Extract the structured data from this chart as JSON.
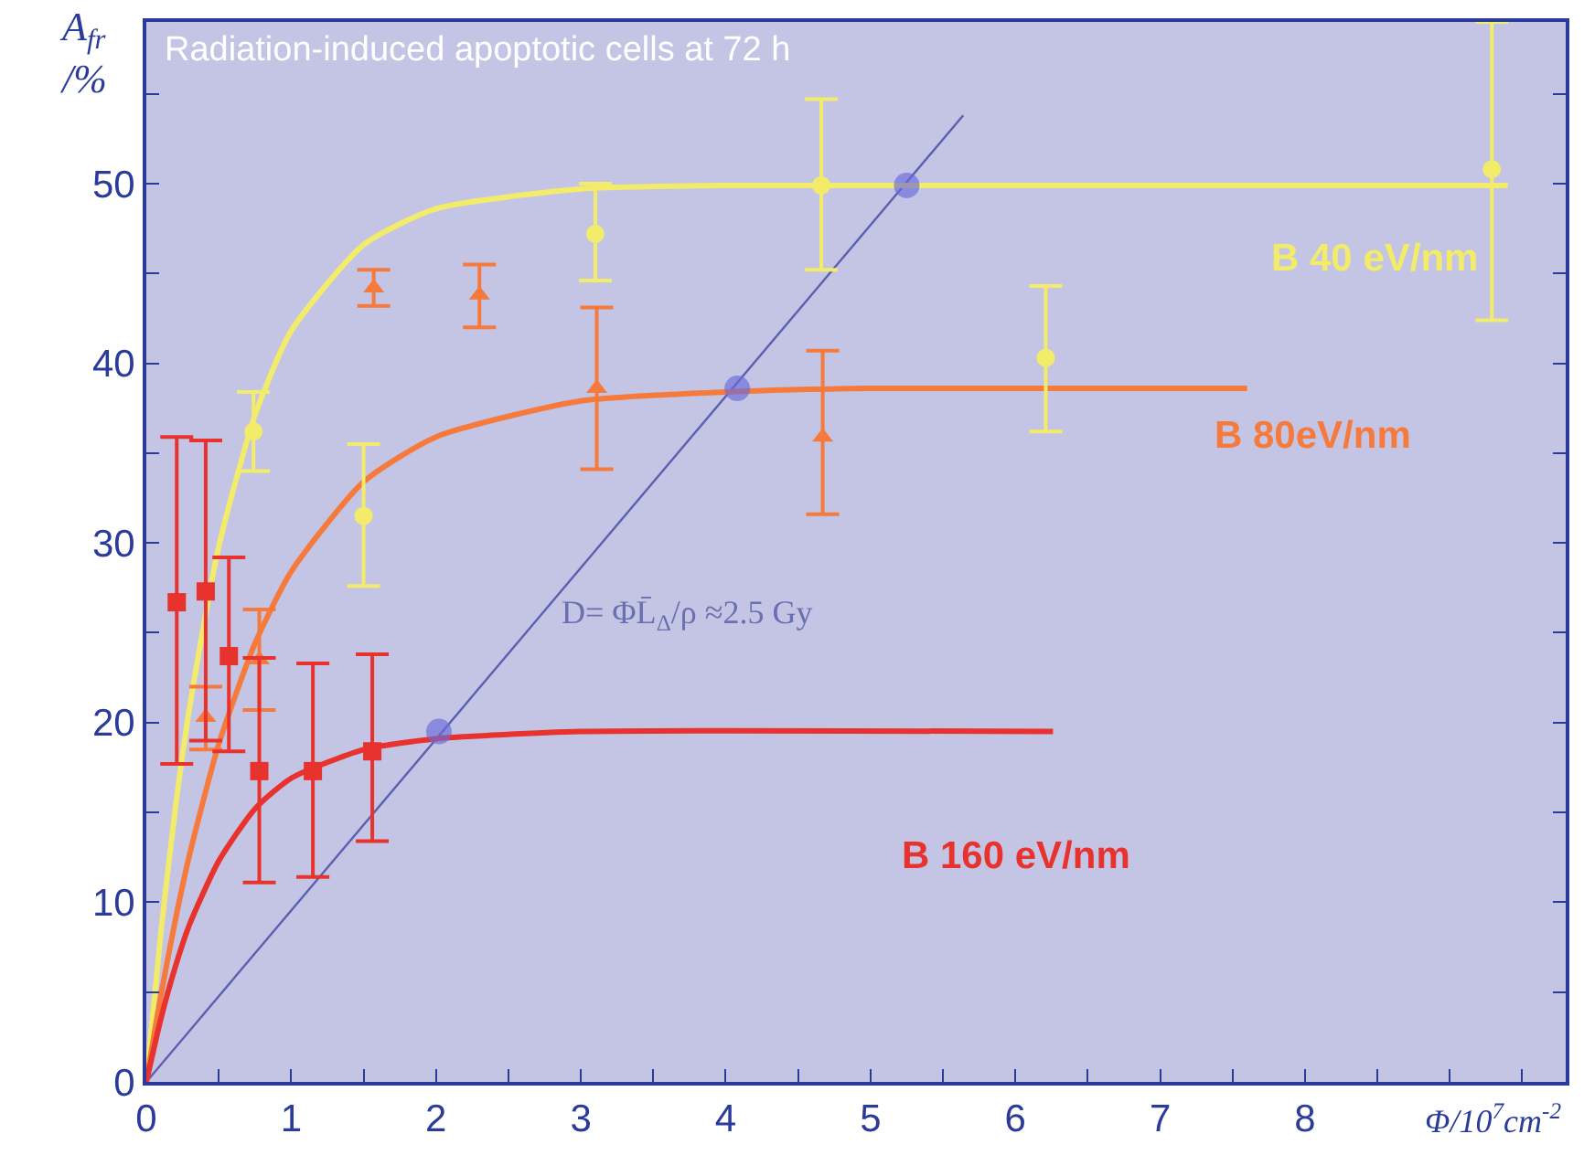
{
  "chart_data": {
    "type": "scatter",
    "title": "Radiation-induced apoptotic cells at 72 h",
    "ylabel": "A$_{fr}$\n/%",
    "xlabel": "Φ/10$^{7}$cm$^{-2}$",
    "xlim": [
      0,
      9.8
    ],
    "ylim": [
      0,
      59
    ],
    "xticks": [
      0,
      {
        "value": 0.5,
        "label": null
      },
      1,
      {
        "value": 1.5,
        "label": null
      },
      2,
      {
        "value": 2.5,
        "label": null
      },
      3,
      {
        "value": 3.5,
        "label": null
      },
      4,
      {
        "value": 4.5,
        "label": null
      },
      5,
      {
        "value": 5.5,
        "label": null
      },
      6,
      {
        "value": 6.5,
        "label": null
      },
      7,
      {
        "value": 7.5,
        "label": null
      },
      8,
      {
        "value": 8.5,
        "label": null
      },
      {
        "value": 9,
        "label": null
      },
      {
        "value": 9.5,
        "label": null
      }
    ],
    "yticks": [
      0,
      {
        "value": 5,
        "label": null
      },
      10,
      {
        "value": 15,
        "label": null
      },
      20,
      {
        "value": 25,
        "label": null
      },
      30,
      {
        "value": 35,
        "label": null
      },
      40,
      {
        "value": 45,
        "label": null
      },
      50,
      {
        "value": 55,
        "label": null
      }
    ],
    "grid": false,
    "legend": false,
    "annotations": [
      "D= ΦL̄$_{Δ}$/ρ ≈2.5 Gy"
    ],
    "series": [
      {
        "type": "line",
        "color": "#5a5fb0",
        "x": [
          0,
          5.64
        ],
        "values": [
          0,
          53.8
        ]
      },
      {
        "type": "line",
        "color": "#f2ec6a",
        "x": [
          0,
          0.1,
          0.2,
          0.3,
          0.5,
          0.75,
          1,
          1.5,
          2,
          3,
          4,
          9.4
        ],
        "values": [
          0,
          8.3,
          15.2,
          20.9,
          29.8,
          37.1,
          41.8,
          46.6,
          48.6,
          49.7,
          49.9,
          49.9
        ]
      },
      {
        "type": "line",
        "color": "#f57a3c",
        "x": [
          0,
          0.1,
          0.2,
          0.3,
          0.5,
          0.75,
          1,
          1.5,
          2,
          3,
          4,
          5,
          7.6
        ],
        "values": [
          0,
          4.8,
          9.0,
          12.7,
          18.8,
          24.4,
          28.4,
          33.4,
          35.9,
          37.9,
          38.4,
          38.6,
          38.6
        ]
      },
      {
        "type": "line",
        "color": "#e8322e",
        "x": [
          0,
          0.1,
          0.2,
          0.3,
          0.5,
          0.75,
          1,
          1.5,
          2,
          3,
          6.26
        ],
        "values": [
          0,
          3.5,
          6.4,
          8.8,
          12.3,
          15.2,
          16.9,
          18.5,
          19.1,
          19.5,
          19.5
        ]
      },
      {
        "name": "B 40 eV/nm",
        "color": "#f2ec6a",
        "marker": "circle",
        "x": [
          0.74,
          1.5,
          3.1,
          4.66,
          6.21,
          9.29
        ],
        "values": [
          36.2,
          31.5,
          47.2,
          49.9,
          40.3,
          50.8
        ],
        "errors": [
          [
            34.0,
            38.4
          ],
          [
            27.6,
            35.5
          ],
          [
            44.6,
            50.0
          ],
          [
            45.2,
            54.7
          ],
          [
            36.2,
            44.3
          ],
          [
            42.4,
            59.0
          ]
        ]
      },
      {
        "name": "B 80eV/nm",
        "color": "#f57a3c",
        "marker": "triangle",
        "x": [
          0.41,
          0.78,
          1.57,
          2.3,
          3.11,
          4.67
        ],
        "values": [
          20.3,
          23.5,
          44.2,
          43.8,
          38.6,
          35.9
        ],
        "errors": [
          [
            18.5,
            22.0
          ],
          [
            20.7,
            26.3
          ],
          [
            43.2,
            45.2
          ],
          [
            42.0,
            45.5
          ],
          [
            34.1,
            43.1
          ],
          [
            31.6,
            40.7
          ]
        ]
      },
      {
        "name": "B 160 eV/nm",
        "color": "#e8322e",
        "marker": "square",
        "x": [
          0.21,
          0.41,
          0.57,
          0.78,
          1.15,
          1.56
        ],
        "values": [
          26.7,
          27.3,
          23.7,
          17.3,
          17.3,
          18.4
        ],
        "errors": [
          [
            17.7,
            35.9
          ],
          [
            19.0,
            35.7
          ],
          [
            18.4,
            29.2
          ],
          [
            11.1,
            23.6
          ],
          [
            11.4,
            23.3
          ],
          [
            13.4,
            23.8
          ]
        ]
      },
      {
        "color": "#6a6ad8",
        "marker": "circle",
        "x": [
          2.02,
          4.08,
          5.25
        ],
        "values": [
          19.5,
          38.6,
          49.9
        ]
      }
    ]
  }
}
